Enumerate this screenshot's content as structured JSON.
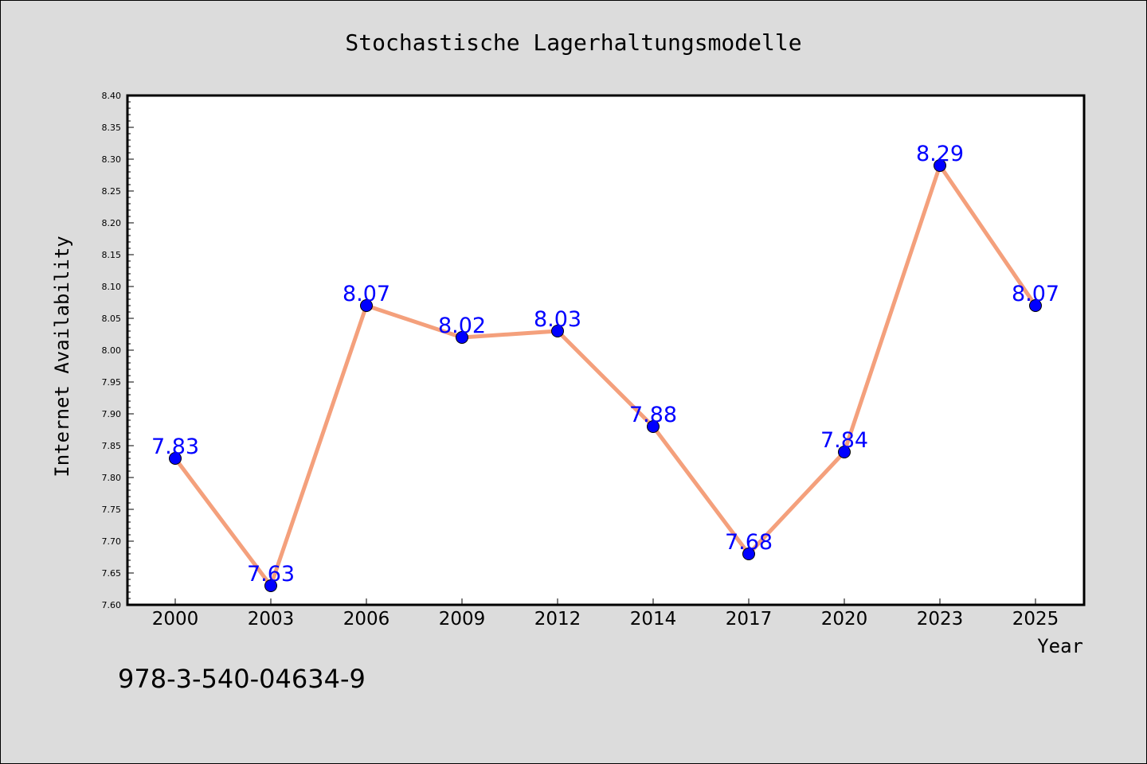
{
  "chart_data": {
    "type": "line",
    "title": "Stochastische Lagerhaltungsmodelle",
    "xlabel": "Year",
    "ylabel": "Internet Availability",
    "categories": [
      "2000",
      "2003",
      "2006",
      "2009",
      "2012",
      "2014",
      "2017",
      "2020",
      "2023",
      "2025"
    ],
    "series": [
      {
        "values": [
          7.83,
          7.63,
          8.07,
          8.02,
          8.03,
          7.88,
          7.68,
          7.84,
          8.29,
          8.07
        ],
        "line_color": "#f4a07c",
        "marker_color": "#0000ff"
      }
    ],
    "data_labels": [
      "7.83",
      "7.63",
      "8.07",
      "8.02",
      "8.03",
      "7.88",
      "7.68",
      "7.84",
      "8.29",
      "8.07"
    ],
    "ylim": [
      7.6,
      8.4
    ],
    "yticks": [
      "7.60",
      "7.65",
      "7.70",
      "7.75",
      "7.80",
      "7.85",
      "7.90",
      "7.95",
      "8.00",
      "8.05",
      "8.10",
      "8.15",
      "8.20",
      "8.25",
      "8.30",
      "8.35",
      "8.40"
    ],
    "grid": false,
    "legend": "none",
    "annotation": "978-3-540-04634-9"
  }
}
